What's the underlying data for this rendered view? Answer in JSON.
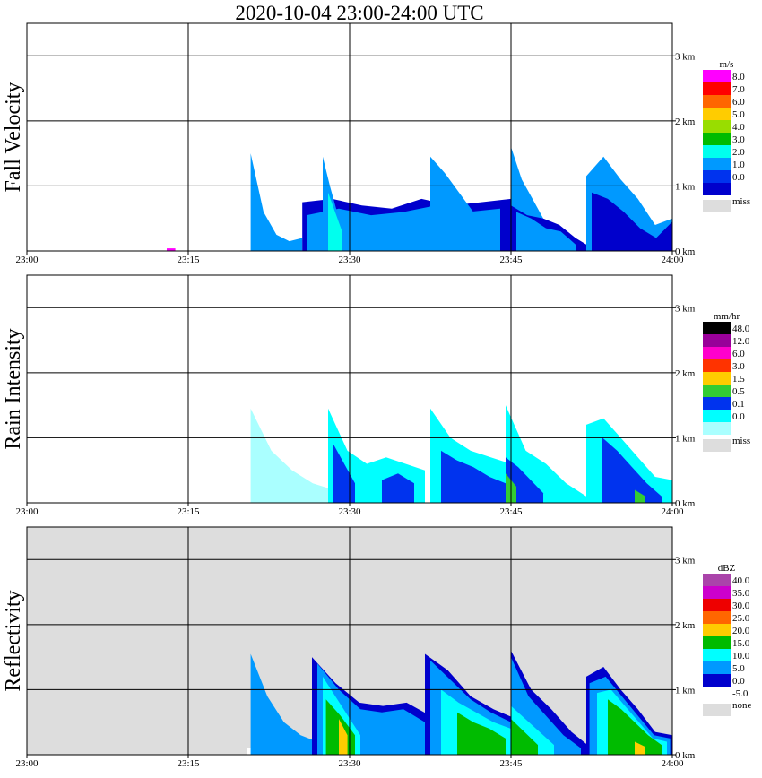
{
  "title": "2020-10-04   23:00-24:00 UTC",
  "chart_data": [
    {
      "type": "heatmap",
      "ylabel": "Fall Velocity",
      "x_ticks": [
        "23:00",
        "23:15",
        "23:30",
        "23:45",
        "24:00"
      ],
      "x_range_min": [
        0,
        60
      ],
      "y_ticks": [
        "0 km",
        "1 km",
        "2 km",
        "3 km"
      ],
      "y_range_km": [
        0,
        3.5
      ],
      "background": "#ffffff",
      "legend": {
        "unit": "m/s",
        "entries": [
          {
            "label": "8.0",
            "color": "#ff00ff"
          },
          {
            "label": "7.0",
            "color": "#ff0000"
          },
          {
            "label": "6.0",
            "color": "#ff6600"
          },
          {
            "label": "5.0",
            "color": "#ffcc00"
          },
          {
            "label": "4.0",
            "color": "#99dd00"
          },
          {
            "label": "3.0",
            "color": "#00bb00"
          },
          {
            "label": "2.0",
            "color": "#00ffee"
          },
          {
            "label": "1.0",
            "color": "#0099ff"
          },
          {
            "label": "0.0",
            "color": "#0033ee"
          }
        ],
        "bottom_colors": [
          "#0000cc"
        ],
        "miss_label": "miss",
        "miss_color": "#dddddd"
      },
      "cells": [
        {
          "t0": 20.8,
          "t1": 25.6,
          "h": [
            1.5,
            0.6,
            0.25,
            0.15,
            0.2
          ],
          "color": "#0099ff"
        },
        {
          "t0": 25.6,
          "t1": 45.0,
          "h": [
            0.75,
            0.8,
            0.7,
            0.65,
            0.8,
            0.7,
            0.75,
            0.8
          ],
          "color": "#0000cc"
        },
        {
          "t0": 26.0,
          "t1": 44.0,
          "h": [
            0.55,
            0.65,
            0.55,
            0.6,
            0.7,
            0.6,
            0.65
          ],
          "color": "#0099ff"
        },
        {
          "t0": 27.5,
          "t1": 29.5,
          "h": [
            1.45,
            1.0,
            0.6,
            0.3
          ],
          "color": "#0099ff"
        },
        {
          "t0": 37.5,
          "t1": 41.5,
          "h": [
            1.45,
            1.2,
            0.9,
            0.6
          ],
          "color": "#0099ff"
        },
        {
          "t0": 45.0,
          "t1": 48.0,
          "h": [
            1.6,
            1.1,
            0.8,
            0.5
          ],
          "color": "#0099ff"
        },
        {
          "t0": 45.0,
          "t1": 52.5,
          "h": [
            0.7,
            0.55,
            0.5,
            0.4,
            0.2,
            0.05
          ],
          "color": "#0000cc"
        },
        {
          "t0": 45.5,
          "t1": 51.0,
          "h": [
            0.6,
            0.5,
            0.35,
            0.3,
            0.1
          ],
          "color": "#0099ff"
        },
        {
          "t0": 52.0,
          "t1": 60.0,
          "h": [
            1.15,
            1.45,
            1.1,
            0.8,
            0.4,
            0.5
          ],
          "color": "#0099ff"
        },
        {
          "t0": 52.5,
          "t1": 60.0,
          "h": [
            0.9,
            0.8,
            0.6,
            0.35,
            0.2,
            0.45
          ],
          "color": "#0000cc"
        },
        {
          "t0": 28.0,
          "t1": 29.3,
          "h": [
            0.9,
            0.6,
            0.3
          ],
          "color": "#00ffee"
        },
        {
          "t0": 13.0,
          "t1": 13.8,
          "h": [
            0.04,
            0.04
          ],
          "color": "#ff00ff"
        }
      ]
    },
    {
      "type": "heatmap",
      "ylabel": "Rain Intensity",
      "x_ticks": [
        "23:00",
        "23:15",
        "23:30",
        "23:45",
        "24:00"
      ],
      "x_range_min": [
        0,
        60
      ],
      "y_ticks": [
        "0 km",
        "1 km",
        "2 km",
        "3 km"
      ],
      "y_range_km": [
        0,
        3.5
      ],
      "background": "#ffffff",
      "legend": {
        "unit": "mm/hr",
        "entries": [
          {
            "label": "48.0",
            "color": "#000000"
          },
          {
            "label": "12.0",
            "color": "#990099"
          },
          {
            "label": "6.0",
            "color": "#ff00cc"
          },
          {
            "label": "3.0",
            "color": "#ff3300"
          },
          {
            "label": "1.5",
            "color": "#ffcc00"
          },
          {
            "label": "0.5",
            "color": "#33cc33"
          },
          {
            "label": "0.1",
            "color": "#0033ee"
          },
          {
            "label": "0.0",
            "color": "#00ffff"
          }
        ],
        "bottom_colors": [
          "#aaffff"
        ],
        "miss_label": "miss",
        "miss_color": "#dddddd"
      },
      "cells": [
        {
          "t0": 20.8,
          "t1": 28.5,
          "h": [
            1.45,
            0.8,
            0.5,
            0.3,
            0.2
          ],
          "color": "#aaffff"
        },
        {
          "t0": 28.0,
          "t1": 37.0,
          "h": [
            1.45,
            0.8,
            0.6,
            0.7,
            0.6,
            0.5
          ],
          "color": "#00ffff"
        },
        {
          "t0": 28.5,
          "t1": 30.5,
          "h": [
            0.9,
            0.6,
            0.3
          ],
          "color": "#0033ee"
        },
        {
          "t0": 37.5,
          "t1": 45.0,
          "h": [
            1.45,
            1.0,
            0.8,
            0.7,
            0.6
          ],
          "color": "#00ffff"
        },
        {
          "t0": 38.5,
          "t1": 44.5,
          "h": [
            0.8,
            0.65,
            0.55,
            0.4,
            0.3
          ],
          "color": "#0033ee"
        },
        {
          "t0": 44.5,
          "t1": 52.0,
          "h": [
            1.5,
            0.8,
            0.6,
            0.3,
            0.1
          ],
          "color": "#00ffff"
        },
        {
          "t0": 44.5,
          "t1": 48.0,
          "h": [
            0.7,
            0.55,
            0.35,
            0.15
          ],
          "color": "#0033ee"
        },
        {
          "t0": 52.0,
          "t1": 60.0,
          "h": [
            1.2,
            1.3,
            1.0,
            0.7,
            0.4,
            0.35
          ],
          "color": "#00ffff"
        },
        {
          "t0": 53.5,
          "t1": 59.0,
          "h": [
            1.0,
            0.8,
            0.55,
            0.3,
            0.1
          ],
          "color": "#0033ee"
        },
        {
          "t0": 33.0,
          "t1": 36.0,
          "h": [
            0.35,
            0.45,
            0.3
          ],
          "color": "#0033ee"
        },
        {
          "t0": 44.5,
          "t1": 45.5,
          "h": [
            0.45,
            0.25
          ],
          "color": "#33cc33"
        },
        {
          "t0": 56.5,
          "t1": 57.5,
          "h": [
            0.2,
            0.1
          ],
          "color": "#33cc33"
        }
      ]
    },
    {
      "type": "heatmap",
      "ylabel": "Reflectivity",
      "x_ticks": [
        "23:00",
        "23:15",
        "23:30",
        "23:45",
        "24:00"
      ],
      "x_range_min": [
        0,
        60
      ],
      "y_ticks": [
        "0 km",
        "1 km",
        "2 km",
        "3 km"
      ],
      "y_range_km": [
        0,
        3.5
      ],
      "background": "#dddddd",
      "legend": {
        "unit": "dBZ",
        "entries": [
          {
            "label": "40.0",
            "color": "#aa44aa"
          },
          {
            "label": "35.0",
            "color": "#cc00cc"
          },
          {
            "label": "30.0",
            "color": "#ee0000"
          },
          {
            "label": "25.0",
            "color": "#ff6600"
          },
          {
            "label": "20.0",
            "color": "#ffcc00"
          },
          {
            "label": "15.0",
            "color": "#00bb00"
          },
          {
            "label": "10.0",
            "color": "#00ffff"
          },
          {
            "label": "5.0",
            "color": "#0099ff"
          },
          {
            "label": "0.0",
            "color": "#0000cc"
          },
          {
            "label": "-5.0",
            "color": "#ffffff"
          }
        ],
        "bottom_colors": [],
        "miss_label": "none",
        "miss_color": "#dddddd"
      },
      "cells": [
        {
          "t0": 20.5,
          "t1": 60.0,
          "h": [
            0.1,
            0.2,
            0.15,
            0.1,
            0.12,
            0.1,
            0.08
          ],
          "color": "#ffffff"
        },
        {
          "t0": 20.8,
          "t1": 27.0,
          "h": [
            1.55,
            0.9,
            0.5,
            0.3,
            0.2
          ],
          "color": "#0099ff"
        },
        {
          "t0": 26.5,
          "t1": 37.5,
          "h": [
            1.5,
            1.1,
            0.8,
            0.75,
            0.8,
            0.6
          ],
          "color": "#0000cc"
        },
        {
          "t0": 27.0,
          "t1": 37.0,
          "h": [
            1.4,
            1.0,
            0.7,
            0.65,
            0.7,
            0.5
          ],
          "color": "#0099ff"
        },
        {
          "t0": 27.5,
          "t1": 31.0,
          "h": [
            1.2,
            0.9,
            0.6,
            0.3
          ],
          "color": "#00ffff"
        },
        {
          "t0": 27.8,
          "t1": 30.5,
          "h": [
            0.85,
            0.6,
            0.3
          ],
          "color": "#00bb00"
        },
        {
          "t0": 37.0,
          "t1": 45.5,
          "h": [
            1.55,
            1.3,
            0.9,
            0.7,
            0.55
          ],
          "color": "#0000cc"
        },
        {
          "t0": 37.5,
          "t1": 45.0,
          "h": [
            1.45,
            1.15,
            0.85,
            0.65,
            0.5
          ],
          "color": "#0099ff"
        },
        {
          "t0": 38.5,
          "t1": 45.0,
          "h": [
            1.0,
            0.8,
            0.65,
            0.5,
            0.4
          ],
          "color": "#00ffff"
        },
        {
          "t0": 40.0,
          "t1": 44.5,
          "h": [
            0.65,
            0.5,
            0.4,
            0.25
          ],
          "color": "#00bb00"
        },
        {
          "t0": 45.0,
          "t1": 52.5,
          "h": [
            1.6,
            1.0,
            0.7,
            0.35,
            0.1
          ],
          "color": "#0000cc"
        },
        {
          "t0": 45.0,
          "t1": 51.5,
          "h": [
            1.5,
            0.9,
            0.6,
            0.3,
            0.1
          ],
          "color": "#0099ff"
        },
        {
          "t0": 45.0,
          "t1": 49.0,
          "h": [
            0.75,
            0.55,
            0.35,
            0.15
          ],
          "color": "#00ffff"
        },
        {
          "t0": 45.0,
          "t1": 47.5,
          "h": [
            0.55,
            0.35,
            0.15
          ],
          "color": "#00bb00"
        },
        {
          "t0": 52.0,
          "t1": 60.0,
          "h": [
            1.2,
            1.35,
            1.0,
            0.7,
            0.35,
            0.3
          ],
          "color": "#0000cc"
        },
        {
          "t0": 52.3,
          "t1": 59.8,
          "h": [
            1.1,
            1.2,
            0.9,
            0.6,
            0.3,
            0.25
          ],
          "color": "#0099ff"
        },
        {
          "t0": 53.0,
          "t1": 59.5,
          "h": [
            0.95,
            1.0,
            0.75,
            0.5,
            0.25,
            0.2
          ],
          "color": "#00ffff"
        },
        {
          "t0": 54.0,
          "t1": 59.0,
          "h": [
            0.85,
            0.7,
            0.5,
            0.3,
            0.15
          ],
          "color": "#00bb00"
        },
        {
          "t0": 29.0,
          "t1": 29.8,
          "h": [
            0.55,
            0.3
          ],
          "color": "#ffcc00"
        },
        {
          "t0": 56.5,
          "t1": 57.5,
          "h": [
            0.2,
            0.12
          ],
          "color": "#ffcc00"
        }
      ]
    }
  ]
}
